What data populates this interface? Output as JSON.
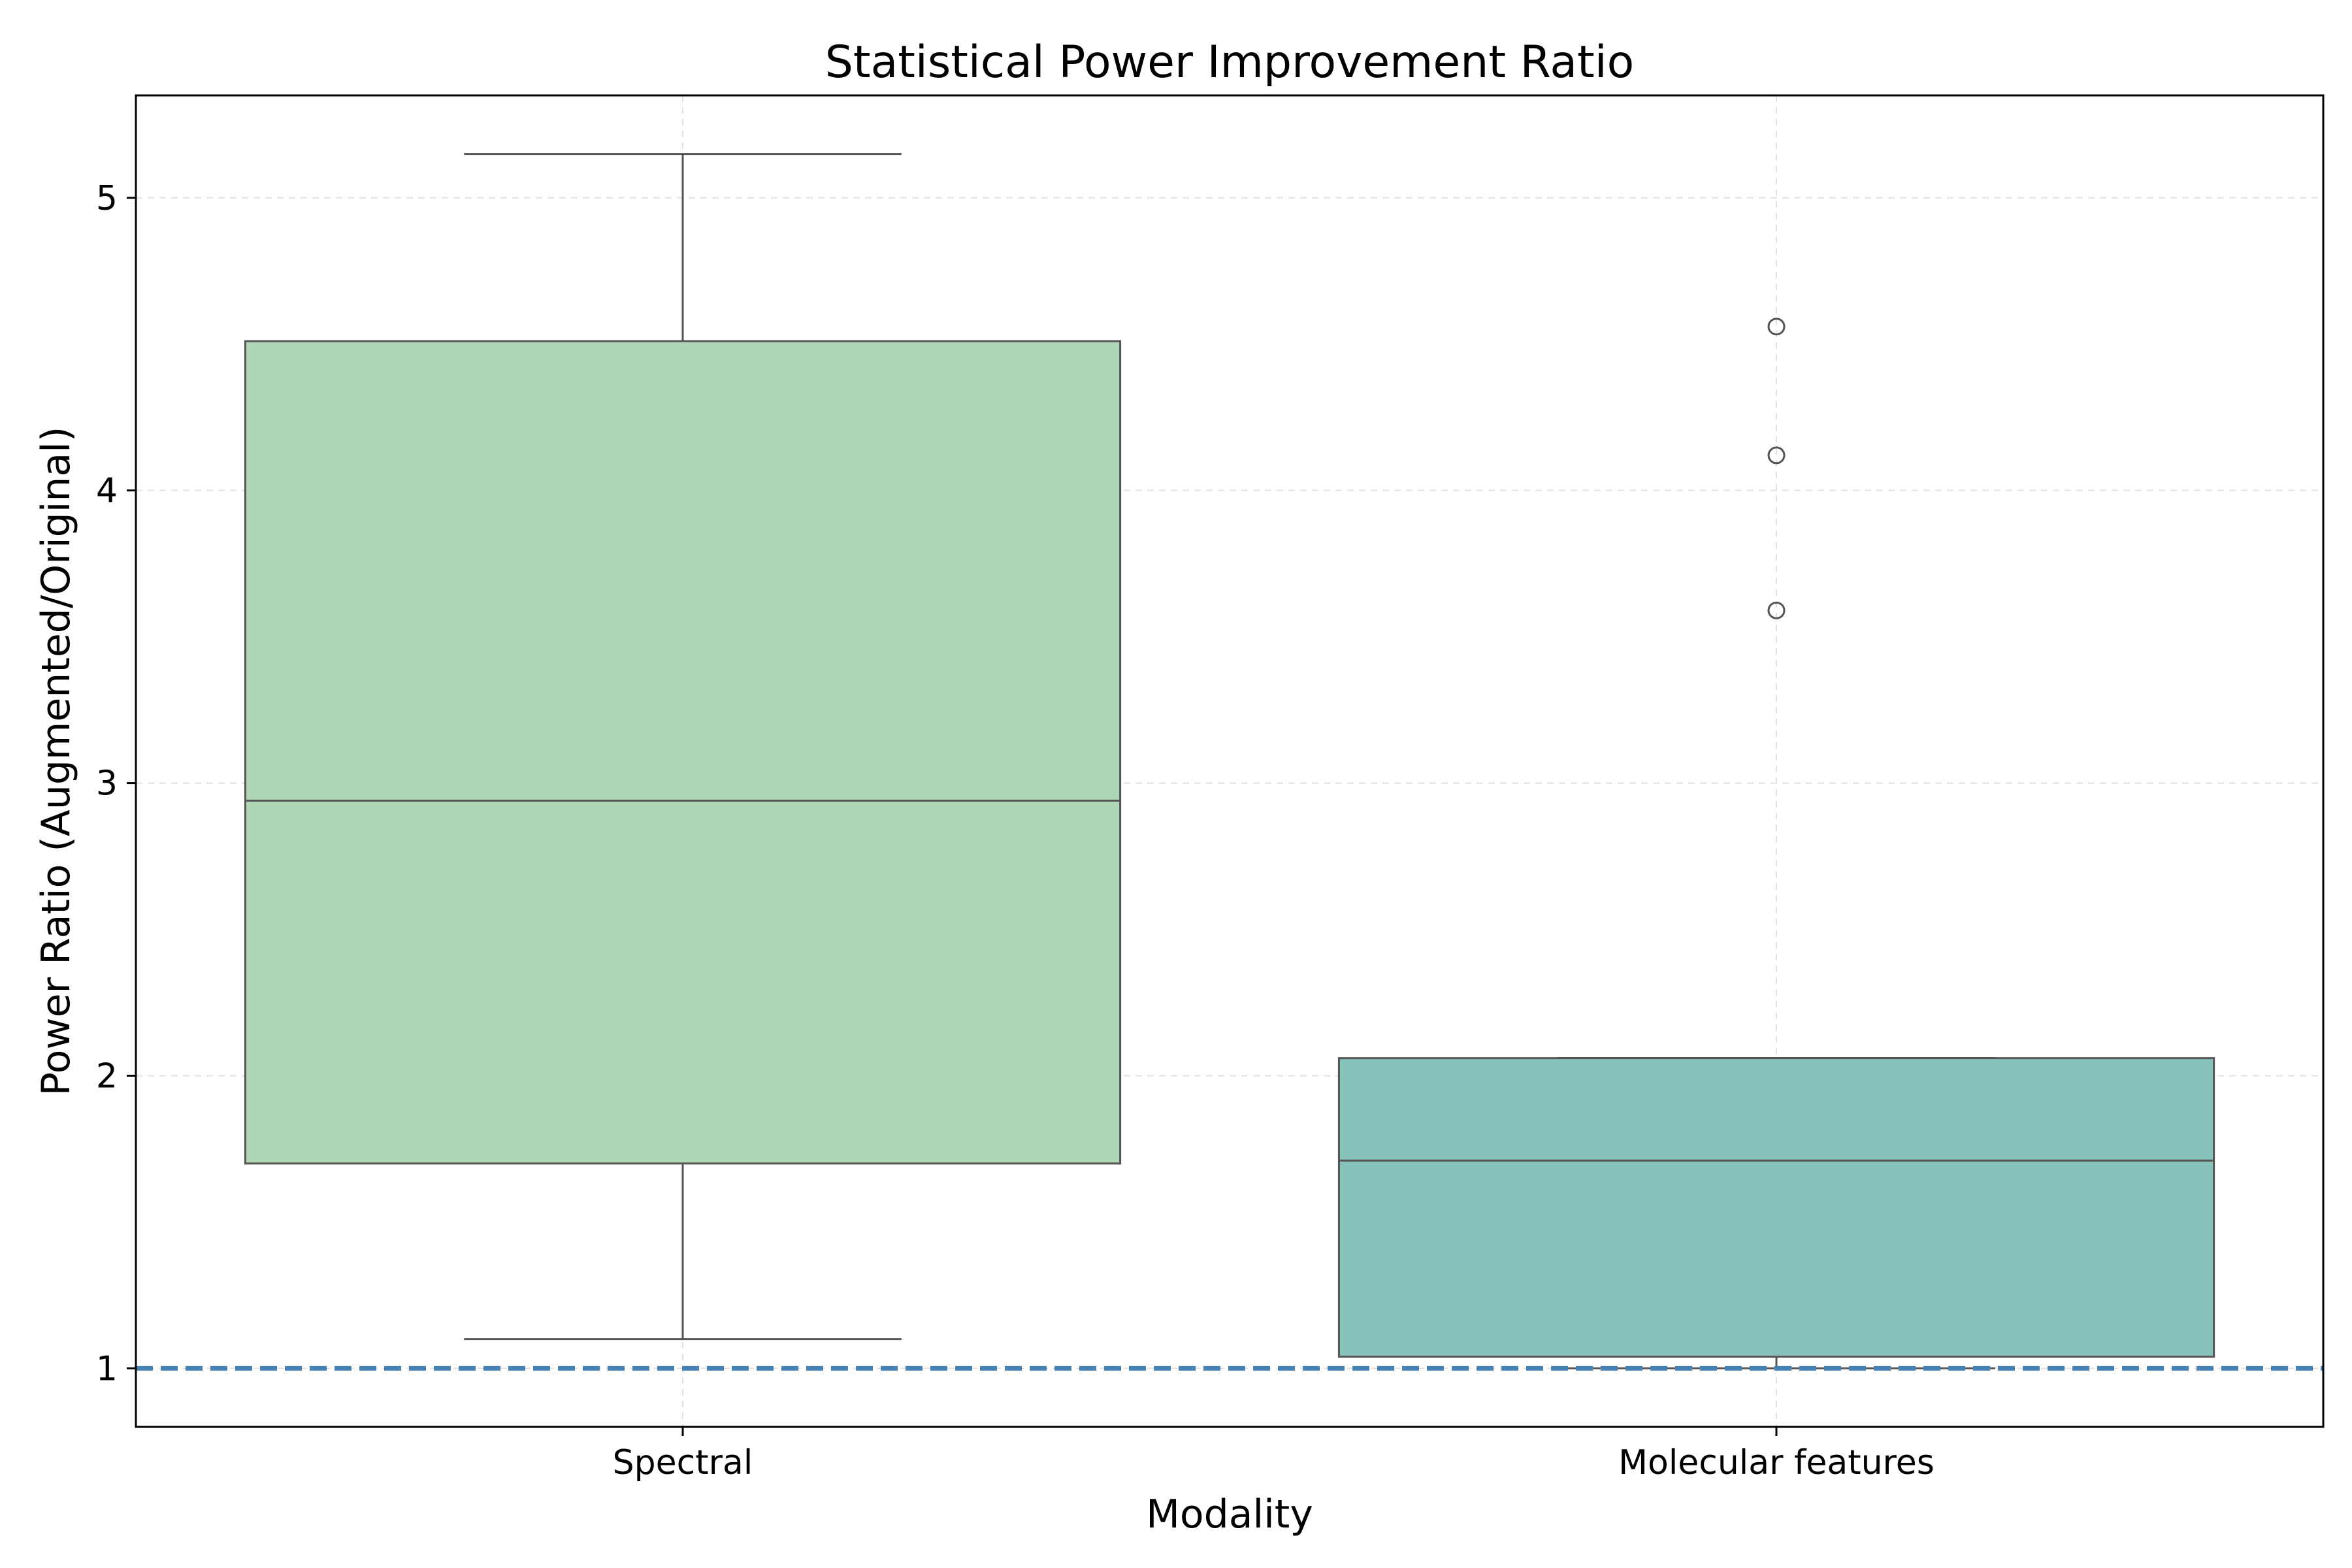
{
  "chart_data": {
    "type": "box",
    "title": "Statistical Power Improvement Ratio",
    "xlabel": "Modality",
    "ylabel": "Power Ratio (Augmented/Original)",
    "categories": [
      "Spectral",
      "Molecular features"
    ],
    "ylim": [
      0.8,
      5.35
    ],
    "yticks": [
      1,
      2,
      3,
      4,
      5
    ],
    "grid": true,
    "reference_line": {
      "y": 1.0,
      "style": "dashed",
      "color": "#4682b4"
    },
    "boxes": [
      {
        "category": "Spectral",
        "whisker_low": 1.1,
        "q1": 1.7,
        "median": 2.94,
        "q3": 4.51,
        "whisker_high": 5.15,
        "outliers": [],
        "color": "#b0d6b8"
      },
      {
        "category": "Molecular features",
        "whisker_low": 1.0,
        "q1": 1.04,
        "median": 1.71,
        "q3": 2.06,
        "whisker_high": 2.06,
        "outliers": [
          3.59,
          4.12,
          4.56
        ],
        "color": "#86c1ba"
      }
    ],
    "colors": {
      "edge": "#555555",
      "grid": "#e2e2e2",
      "axes": "#000000"
    }
  }
}
